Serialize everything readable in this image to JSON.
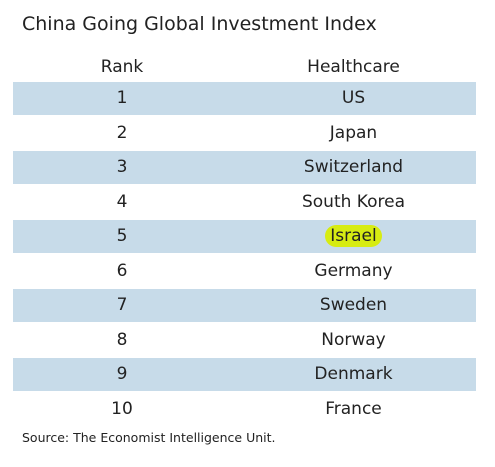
{
  "chart_data": {
    "type": "table",
    "title": "China Going Global Investment Index",
    "columns": [
      "Rank",
      "Healthcare"
    ],
    "rows": [
      {
        "rank": "1",
        "country": "US"
      },
      {
        "rank": "2",
        "country": "Japan"
      },
      {
        "rank": "3",
        "country": "Switzerland"
      },
      {
        "rank": "4",
        "country": "South Korea"
      },
      {
        "rank": "5",
        "country": "Israel",
        "highlighted": true
      },
      {
        "rank": "6",
        "country": "Germany"
      },
      {
        "rank": "7",
        "country": "Sweden"
      },
      {
        "rank": "8",
        "country": "Norway"
      },
      {
        "rank": "9",
        "country": "Denmark"
      },
      {
        "rank": "10",
        "country": "France"
      }
    ],
    "source": "Source: The Economist Intelligence Unit."
  },
  "colors": {
    "row_shade": "#c7dbe9",
    "row_plain": "#ffffff",
    "highlight": "#d7ec12",
    "text": "#222222"
  }
}
